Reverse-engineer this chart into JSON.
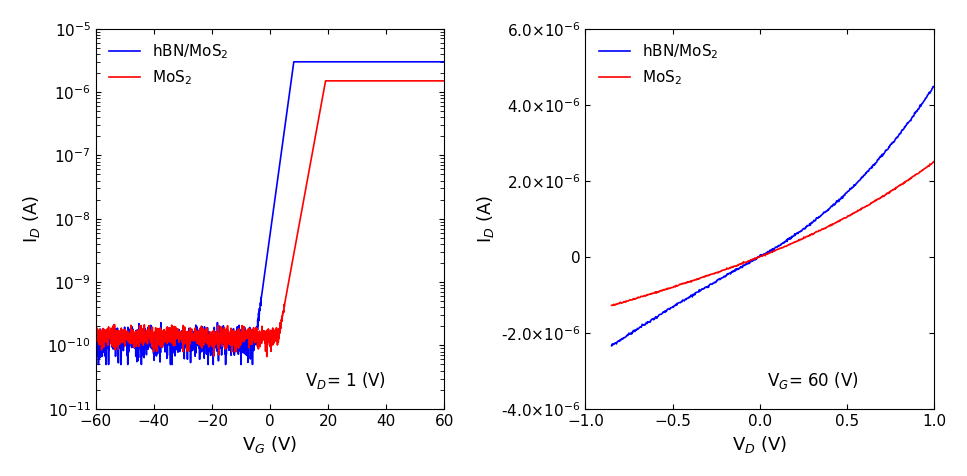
{
  "fig_width": 9.67,
  "fig_height": 4.76,
  "dpi": 100,
  "left_plot": {
    "xlabel": "V$_G$ (V)",
    "ylabel": "I$_D$ (A)",
    "xlim": [
      -60,
      60
    ],
    "ylim_log": [
      1e-11,
      1e-05
    ],
    "xticks": [
      -60,
      -40,
      -20,
      0,
      20,
      40,
      60
    ],
    "annotation": "V$_D$= 1 (V)",
    "blue_label": "hBN/MoS$_2$",
    "red_label": "MoS$_2$",
    "blue_color": "#0000FF",
    "red_color": "#FF0000"
  },
  "right_plot": {
    "xlabel": "V$_D$ (V)",
    "ylabel": "I$_D$ (A)",
    "xlim": [
      -1.0,
      1.0
    ],
    "ylim": [
      -4e-06,
      6e-06
    ],
    "xticks": [
      -1.0,
      -0.5,
      0.0,
      0.5,
      1.0
    ],
    "yticks": [
      -4e-06,
      -2e-06,
      0,
      2e-06,
      4e-06,
      6e-06
    ],
    "annotation": "V$_G$= 60 (V)",
    "blue_label": "hBN/MoS$_2$",
    "red_label": "MoS$_2$",
    "blue_color": "#0000FF",
    "red_color": "#FF0000"
  }
}
